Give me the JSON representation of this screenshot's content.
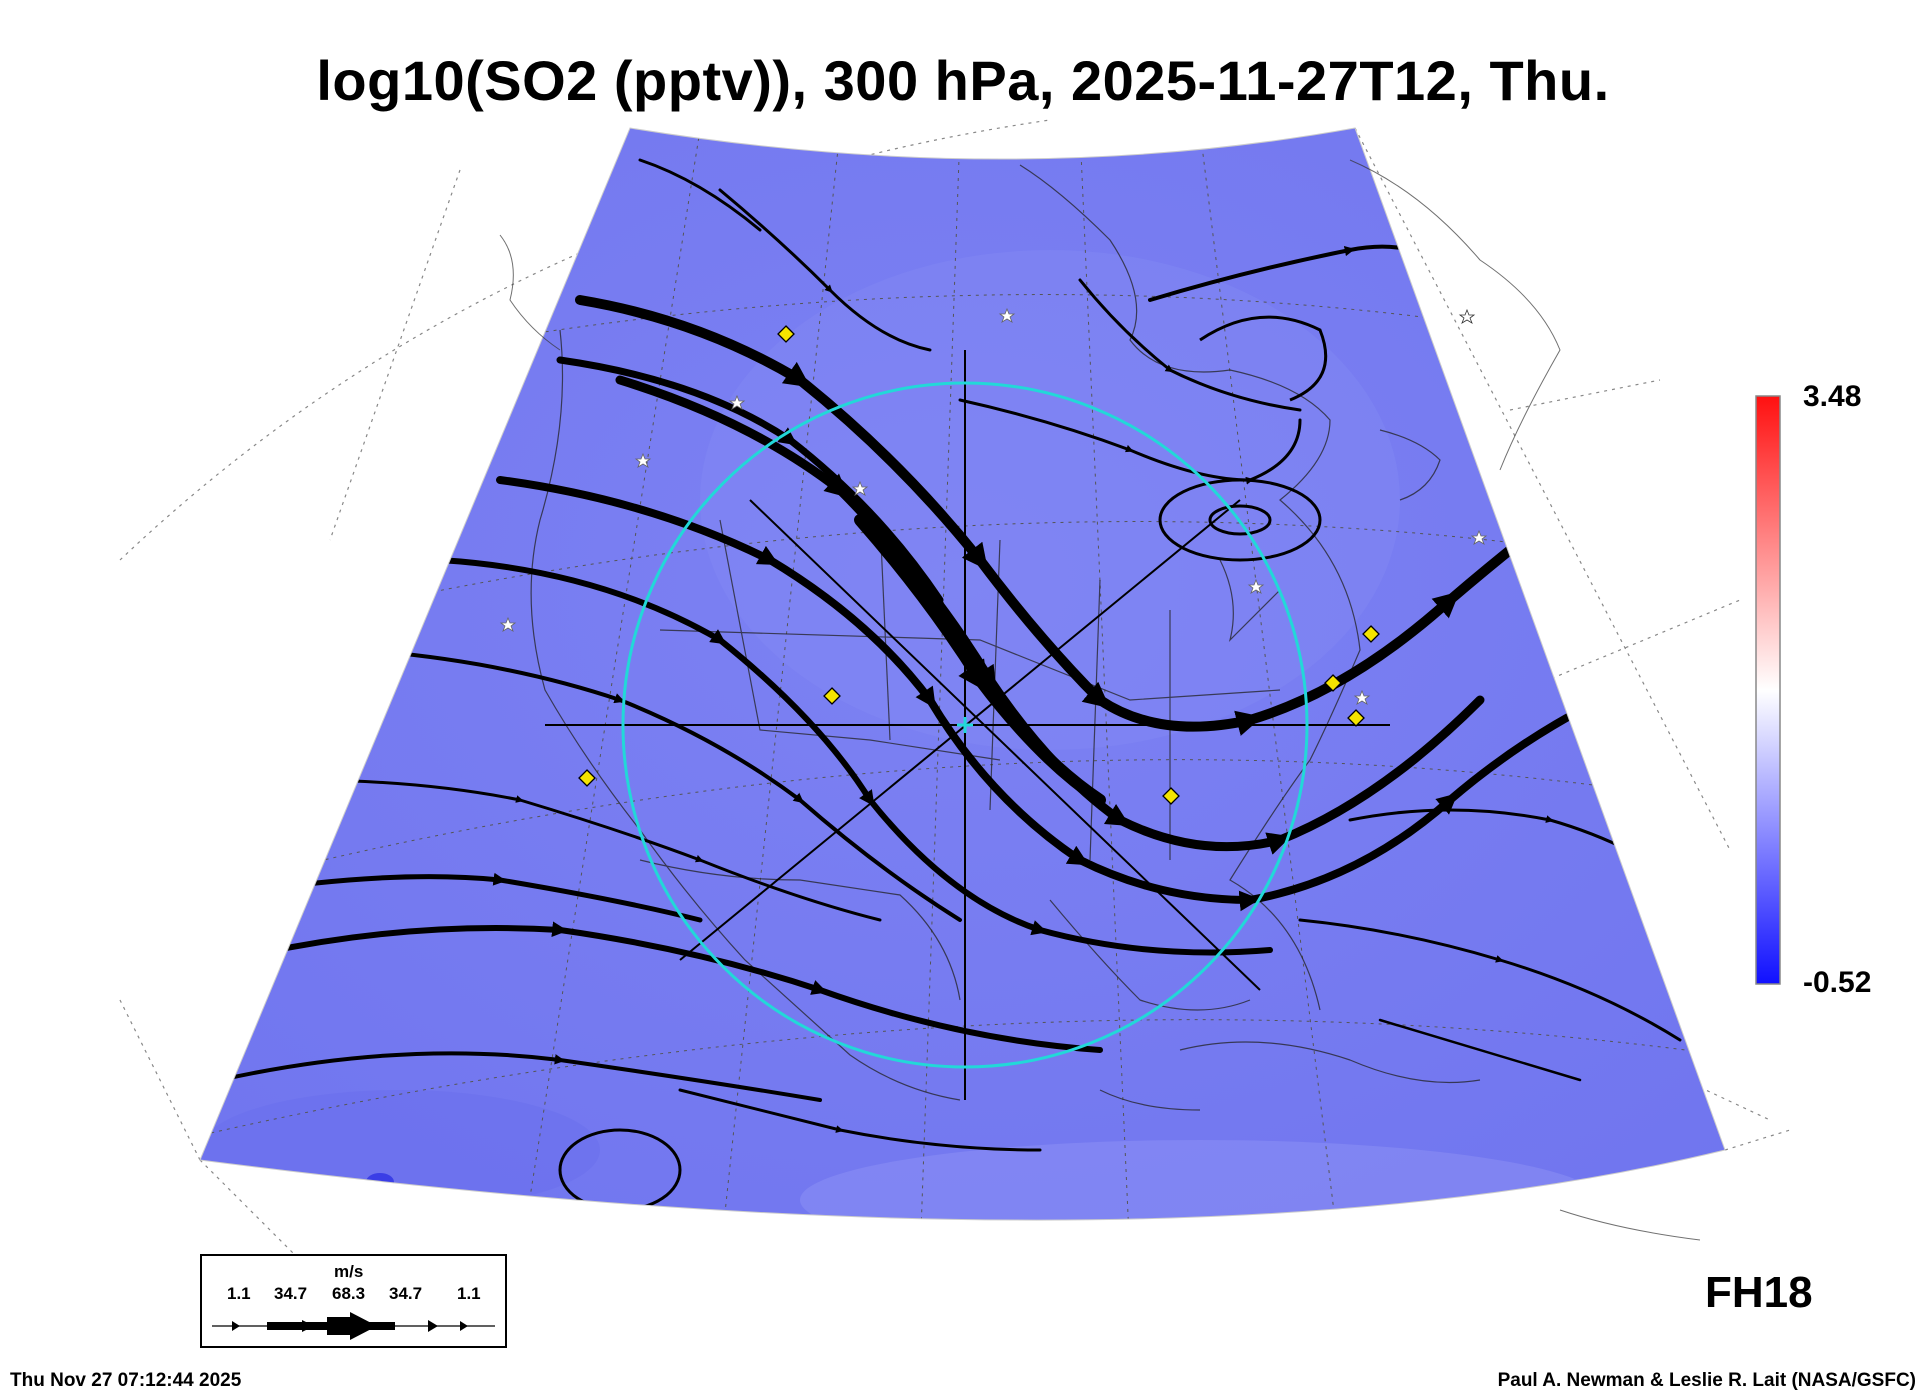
{
  "title": "log10(SO2 (pptv)), 300 hPa, 2025-11-27T12, Thu.",
  "colorbar": {
    "max_label": "3.48",
    "min_label": "-0.52",
    "colors": [
      "#1010ff",
      "#ffffff",
      "#ff1010"
    ]
  },
  "forecast_hour": "FH18",
  "timestamp": "Thu Nov 27 07:12:44 2025",
  "credit": "Paul A. Newman & Leslie R. Lait (NASA/GSFC)",
  "wind_scale": {
    "unit": "m/s",
    "labels": [
      "1.1",
      "34.7",
      "68.3",
      "34.7",
      "1.1"
    ]
  },
  "colors": {
    "field": "#7a7ff2",
    "ring": "#22d8d8",
    "marker": "#f5e400",
    "streamline": "#000000"
  },
  "legend_icons": [
    "streamline-arrow",
    "yellow-diamond-marker",
    "white-star-marker",
    "cyan-center-marker"
  ]
}
